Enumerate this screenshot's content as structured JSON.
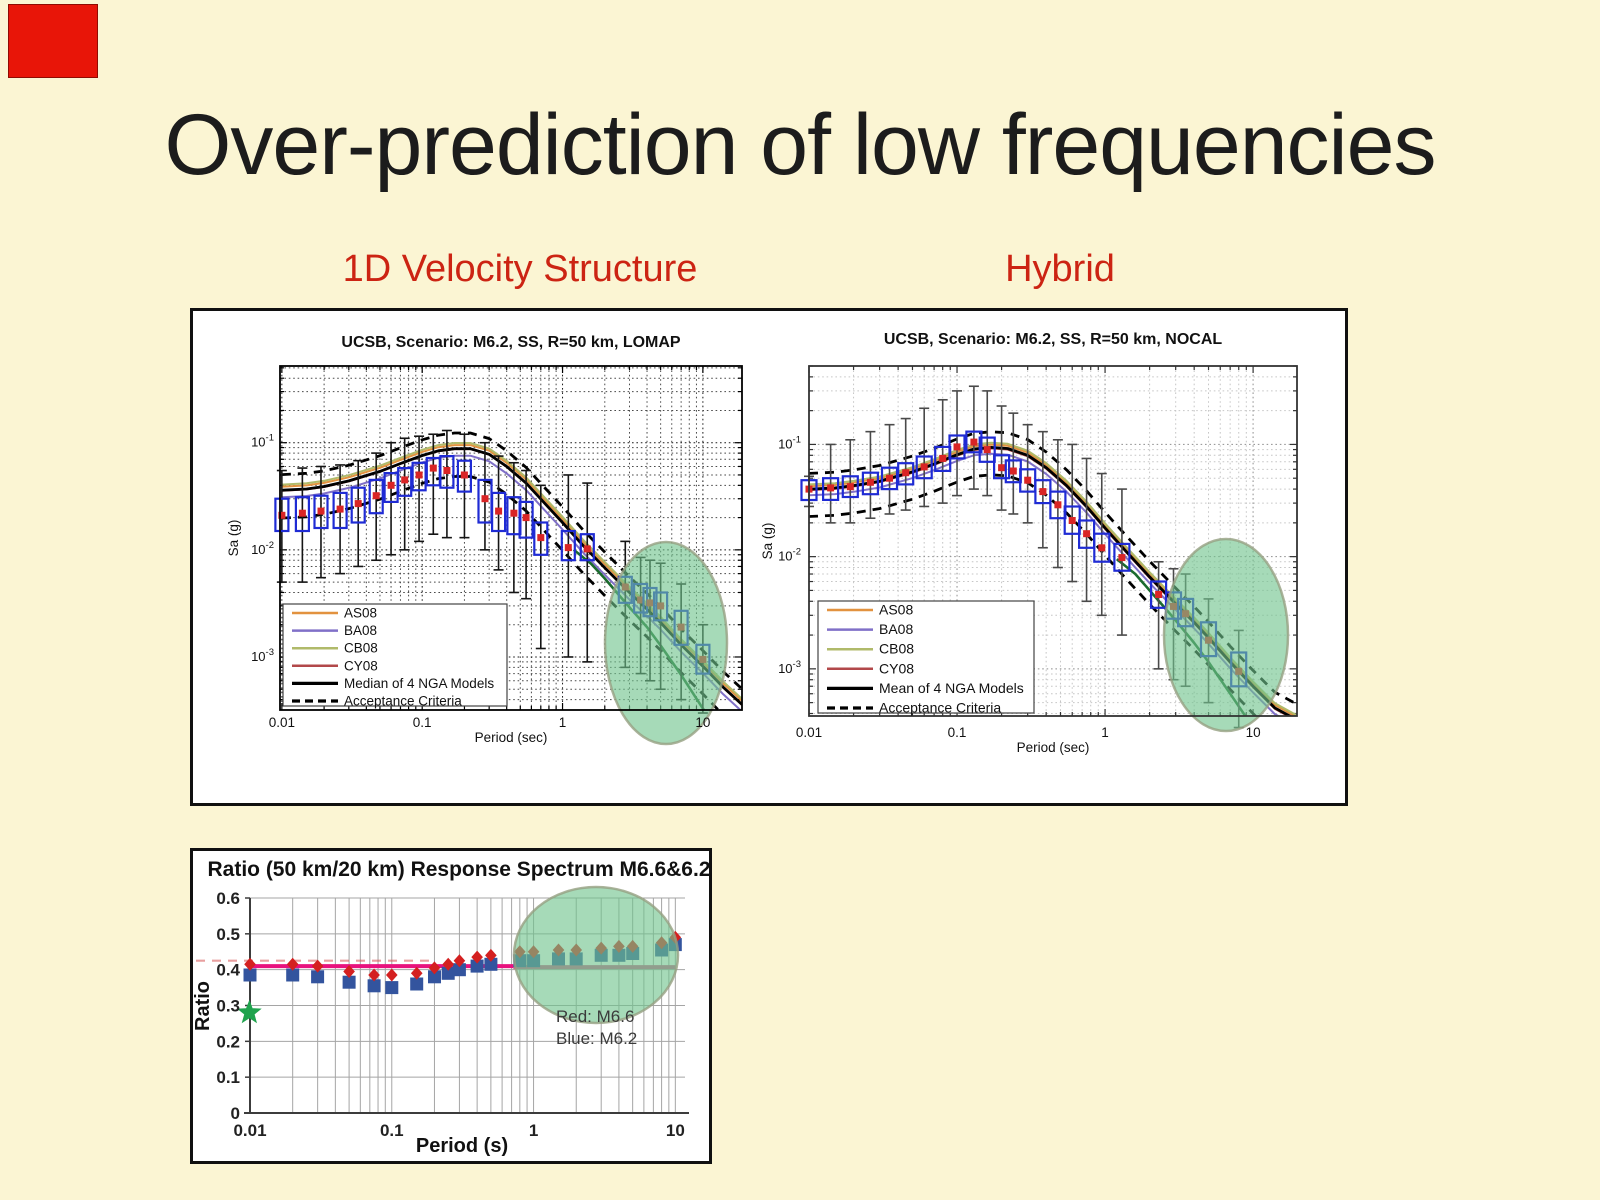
{
  "slide": {
    "title": "Over-prediction of low frequencies",
    "left_heading": "1D Velocity Structure",
    "right_heading": "Hybrid",
    "colors": {
      "background": "#fbf5d3",
      "title_text": "#1c1c1c",
      "heading_red": "#cc2413",
      "panel_border": "#101010",
      "red_chip": "#e81508",
      "highlight_fill": "rgba(111,196,141,0.62)",
      "highlight_stroke": "rgba(150,160,130,0.8)",
      "box_stroke": "#1f2bd4",
      "median_marker": "#d92525",
      "ucsb_green": "#1b6b2e"
    }
  },
  "chart_data": [
    {
      "id": "lomap",
      "type": "boxplot-line-log-log",
      "title": "UCSB, Scenario: M6.2, SS, R=50 km, LOMAP",
      "xlabel": "Period (sec)",
      "ylabel": "Sa (g)",
      "xlim": [
        0.0097,
        19
      ],
      "ylim": [
        0.00032,
        0.52
      ],
      "xtick_labels": [
        "0.01",
        "0.1",
        "1",
        "10"
      ],
      "xtick_values": [
        0.01,
        0.1,
        1,
        10
      ],
      "ytick_exponents": [
        -1,
        -2,
        -3
      ],
      "grid": "dense-dark-dotted",
      "legend_position": "bottom-left",
      "legend": [
        {
          "label": "AS08",
          "color": "#e2923f",
          "style": "solid"
        },
        {
          "label": "BA08",
          "color": "#8070c8",
          "style": "solid"
        },
        {
          "label": "CB08",
          "color": "#b0ba6a",
          "style": "solid"
        },
        {
          "label": "CY08",
          "color": "#b2484a",
          "style": "solid"
        },
        {
          "label": "Median of 4 NGA Models",
          "color": "#000000",
          "style": "solid-thick"
        },
        {
          "label": "Acceptance Criteria",
          "color": "#000000",
          "style": "dashed"
        }
      ],
      "x": [
        0.01,
        0.015,
        0.02,
        0.03,
        0.05,
        0.07,
        0.1,
        0.13,
        0.17,
        0.22,
        0.3,
        0.4,
        0.55,
        0.75,
        1,
        1.4,
        2,
        3,
        4,
        5,
        7,
        10,
        14,
        19
      ],
      "median": [
        0.036,
        0.037,
        0.039,
        0.044,
        0.054,
        0.064,
        0.076,
        0.084,
        0.088,
        0.088,
        0.078,
        0.06,
        0.042,
        0.027,
        0.018,
        0.011,
        0.0068,
        0.004,
        0.0028,
        0.0021,
        0.0013,
        0.00082,
        0.00052,
        0.00036
      ],
      "models": [
        {
          "name": "AS08",
          "color": "#e2923f",
          "mult": 1.08
        },
        {
          "name": "BA08",
          "color": "#8070c8",
          "mult": 0.86
        },
        {
          "name": "CB08",
          "color": "#b0ba6a",
          "mult": 1.13
        },
        {
          "name": "CY08",
          "color": "#b2484a",
          "mult": 0.99
        }
      ],
      "accept_upper_mult": 1.4,
      "accept_lower_mult": 0.55,
      "ucsb_line": {
        "x": [
          1.2,
          1.6,
          2,
          3,
          4,
          5,
          7,
          10,
          13
        ],
        "y": [
          0.01,
          0.0074,
          0.0054,
          0.0029,
          0.0019,
          0.00128,
          0.00068,
          0.00033,
          0.00021
        ]
      },
      "boxes": [
        [
          0.01,
          0.005,
          0.015,
          0.021,
          0.03,
          0.055
        ],
        [
          0.014,
          0.005,
          0.015,
          0.022,
          0.031,
          0.058
        ],
        [
          0.019,
          0.0055,
          0.016,
          0.023,
          0.032,
          0.06
        ],
        [
          0.026,
          0.006,
          0.016,
          0.024,
          0.034,
          0.062
        ],
        [
          0.035,
          0.007,
          0.018,
          0.027,
          0.038,
          0.068
        ],
        [
          0.047,
          0.008,
          0.022,
          0.032,
          0.045,
          0.08
        ],
        [
          0.06,
          0.009,
          0.028,
          0.04,
          0.052,
          0.1
        ],
        [
          0.075,
          0.01,
          0.032,
          0.045,
          0.058,
          0.11
        ],
        [
          0.095,
          0.012,
          0.036,
          0.05,
          0.065,
          0.115
        ],
        [
          0.12,
          0.014,
          0.04,
          0.058,
          0.072,
          0.12
        ],
        [
          0.15,
          0.013,
          0.038,
          0.055,
          0.075,
          0.13
        ],
        [
          0.2,
          0.013,
          0.035,
          0.05,
          0.068,
          0.12
        ],
        [
          0.28,
          0.01,
          0.018,
          0.03,
          0.045,
          0.1
        ],
        [
          0.35,
          0.0065,
          0.015,
          0.023,
          0.034,
          0.075
        ],
        [
          0.45,
          0.004,
          0.014,
          0.022,
          0.031,
          0.065
        ],
        [
          0.55,
          0.0035,
          0.013,
          0.02,
          0.028,
          0.055
        ],
        [
          0.7,
          0.0012,
          0.009,
          0.013,
          0.018,
          0.04
        ],
        [
          1.1,
          0.001,
          0.008,
          0.0105,
          0.015,
          0.05
        ],
        [
          1.5,
          0.0009,
          0.008,
          0.0102,
          0.014,
          0.042
        ],
        [
          2.8,
          0.0008,
          0.0032,
          0.0045,
          0.0056,
          0.012
        ],
        [
          3.6,
          0.0007,
          0.0026,
          0.0034,
          0.0048,
          0.0085
        ],
        [
          4.2,
          0.0006,
          0.0024,
          0.0032,
          0.0044,
          0.008
        ],
        [
          5.0,
          0.0005,
          0.0022,
          0.003,
          0.004,
          0.0075
        ],
        [
          7.0,
          0.0004,
          0.0013,
          0.0019,
          0.0027,
          0.0048
        ],
        [
          10.0,
          0.0003,
          0.0007,
          0.00095,
          0.0013,
          0.002
        ]
      ],
      "highlight_note": "green ellipse over long periods ~2-15 s where simulation falls below NGA models"
    },
    {
      "id": "nocal",
      "type": "boxplot-line-log-log",
      "title": "UCSB, Scenario: M6.2, SS, R=50 km, NOCAL",
      "xlabel": "Period (sec)",
      "ylabel": "Sa (g)",
      "xlim": [
        0.01,
        19.8
      ],
      "ylim": [
        0.00038,
        0.5
      ],
      "xtick_labels": [
        "0.01",
        "0.1",
        "1",
        "10"
      ],
      "xtick_values": [
        0.01,
        0.1,
        1,
        10
      ],
      "ytick_exponents": [
        -1,
        -2,
        -3
      ],
      "grid": "light-gray-dotted",
      "legend_position": "bottom-left",
      "legend": [
        {
          "label": "AS08",
          "color": "#e2923f",
          "style": "solid"
        },
        {
          "label": "BA08",
          "color": "#8070c8",
          "style": "solid"
        },
        {
          "label": "CB08",
          "color": "#b0ba6a",
          "style": "solid"
        },
        {
          "label": "CY08",
          "color": "#b2484a",
          "style": "solid"
        },
        {
          "label": "Mean of 4 NGA Models",
          "color": "#000000",
          "style": "solid-thick"
        },
        {
          "label": "Acceptance Criteria",
          "color": "#000000",
          "style": "dashed"
        }
      ],
      "x": [
        0.01,
        0.015,
        0.02,
        0.03,
        0.05,
        0.07,
        0.1,
        0.13,
        0.17,
        0.22,
        0.3,
        0.4,
        0.55,
        0.75,
        1,
        1.4,
        2,
        3,
        4,
        5,
        7,
        10,
        14,
        19.8
      ],
      "median": [
        0.04,
        0.041,
        0.043,
        0.047,
        0.057,
        0.067,
        0.081,
        0.091,
        0.094,
        0.092,
        0.08,
        0.062,
        0.043,
        0.028,
        0.018,
        0.011,
        0.0066,
        0.0038,
        0.0026,
        0.0019,
        0.00115,
        0.0007,
        0.00045,
        0.00035
      ],
      "models": [
        {
          "name": "AS08",
          "color": "#e2923f",
          "mult": 1.06
        },
        {
          "name": "BA08",
          "color": "#8070c8",
          "mult": 0.88
        },
        {
          "name": "CB08",
          "color": "#b0ba6a",
          "mult": 1.1
        },
        {
          "name": "CY08",
          "color": "#b2484a",
          "mult": 0.98
        }
      ],
      "accept_upper_mult": 1.38,
      "accept_lower_mult": 0.57,
      "ucsb_line": {
        "x": [
          1.2,
          1.6,
          2,
          3,
          4,
          5,
          7,
          10,
          12
        ],
        "y": [
          0.0095,
          0.007,
          0.005,
          0.0027,
          0.0017,
          0.00115,
          0.0006,
          0.0003,
          0.00025
        ]
      },
      "boxes": [
        [
          0.01,
          0.028,
          0.032,
          0.04,
          0.048,
          0.052
        ],
        [
          0.014,
          0.02,
          0.032,
          0.041,
          0.05,
          0.1
        ],
        [
          0.019,
          0.02,
          0.034,
          0.042,
          0.052,
          0.11
        ],
        [
          0.026,
          0.022,
          0.036,
          0.046,
          0.056,
          0.13
        ],
        [
          0.035,
          0.024,
          0.04,
          0.05,
          0.062,
          0.15
        ],
        [
          0.045,
          0.026,
          0.044,
          0.056,
          0.068,
          0.17
        ],
        [
          0.06,
          0.028,
          0.05,
          0.063,
          0.078,
          0.21
        ],
        [
          0.08,
          0.03,
          0.058,
          0.075,
          0.095,
          0.25
        ],
        [
          0.1,
          0.035,
          0.075,
          0.095,
          0.12,
          0.3
        ],
        [
          0.13,
          0.04,
          0.085,
          0.105,
          0.13,
          0.33
        ],
        [
          0.16,
          0.035,
          0.07,
          0.09,
          0.115,
          0.3
        ],
        [
          0.2,
          0.026,
          0.05,
          0.062,
          0.08,
          0.22
        ],
        [
          0.24,
          0.024,
          0.046,
          0.058,
          0.072,
          0.19
        ],
        [
          0.3,
          0.02,
          0.038,
          0.048,
          0.06,
          0.15
        ],
        [
          0.38,
          0.012,
          0.03,
          0.038,
          0.048,
          0.13
        ],
        [
          0.48,
          0.008,
          0.022,
          0.029,
          0.038,
          0.11
        ],
        [
          0.6,
          0.006,
          0.016,
          0.021,
          0.028,
          0.1
        ],
        [
          0.75,
          0.004,
          0.012,
          0.016,
          0.021,
          0.075
        ],
        [
          0.95,
          0.003,
          0.009,
          0.012,
          0.016,
          0.055
        ],
        [
          1.3,
          0.002,
          0.0075,
          0.0098,
          0.013,
          0.04
        ],
        [
          2.3,
          0.001,
          0.0035,
          0.0046,
          0.006,
          0.009
        ],
        [
          2.9,
          0.0008,
          0.0028,
          0.0036,
          0.0048,
          0.0078
        ],
        [
          3.5,
          0.0007,
          0.0024,
          0.0031,
          0.0042,
          0.007
        ],
        [
          5.0,
          0.0005,
          0.0013,
          0.0018,
          0.0026,
          0.0042
        ],
        [
          8.0,
          0.0003,
          0.0007,
          0.00095,
          0.0014,
          0.0022
        ]
      ],
      "highlight_note": "green ellipse over long periods ~2-15 s where simulation falls below NGA models"
    },
    {
      "id": "ratio",
      "type": "scatter-log-x",
      "title": "Ratio (50 km/20 km) Response Spectrum M6.6&6.2",
      "xlabel": "Period (s)",
      "ylabel": "Ratio",
      "xlim": [
        0.01,
        11.7
      ],
      "ylim": [
        0,
        0.6
      ],
      "xtick_labels": [
        "0.01",
        "0.1",
        "1",
        "10"
      ],
      "xtick_values": [
        0.01,
        0.1,
        1,
        10
      ],
      "ytick_values": [
        0,
        0.1,
        0.2,
        0.3,
        0.4,
        0.5,
        0.6
      ],
      "ytick_labels": [
        "0",
        "0.1",
        "0.2",
        "0.3",
        "0.4",
        "0.5",
        "0.6"
      ],
      "grid": "solid-gray",
      "x": [
        0.01,
        0.02,
        0.03,
        0.05,
        0.075,
        0.1,
        0.15,
        0.2,
        0.25,
        0.3,
        0.4,
        0.5,
        0.8,
        1,
        1.5,
        2,
        3,
        4,
        5,
        8,
        10
      ],
      "series": [
        {
          "name": "Red: M6.6",
          "marker": "diamond",
          "color": "#d42020",
          "values": [
            0.415,
            0.415,
            0.41,
            0.395,
            0.385,
            0.385,
            0.39,
            0.405,
            0.415,
            0.425,
            0.435,
            0.44,
            0.45,
            0.45,
            0.455,
            0.455,
            0.46,
            0.465,
            0.465,
            0.475,
            0.49
          ]
        },
        {
          "name": "Blue: M6.2",
          "marker": "square",
          "color": "#33549e",
          "values": [
            0.385,
            0.385,
            0.38,
            0.365,
            0.355,
            0.35,
            0.36,
            0.38,
            0.39,
            0.4,
            0.41,
            0.415,
            0.425,
            0.425,
            0.43,
            0.43,
            0.44,
            0.44,
            0.445,
            0.455,
            0.47
          ]
        }
      ],
      "baseline": {
        "y": 0.41,
        "x0": 0.01,
        "x1": 0.72,
        "color": "#e8127e"
      },
      "baseline_extension": {
        "y": 0.407,
        "x0": 0.72,
        "x1": 10,
        "color": "#c75f8e"
      },
      "dashed_guide": {
        "y": 0.425,
        "x1": 0.2,
        "color": "rgba(214,80,80,0.55)"
      },
      "star_point": {
        "x": 0.0099,
        "y": 0.28,
        "color": "#1fa34d"
      },
      "annotation": [
        "Red: M6.6",
        "Blue: M6.2"
      ],
      "highlight_note": "green ellipse over periods ~0.7-10 s"
    }
  ]
}
